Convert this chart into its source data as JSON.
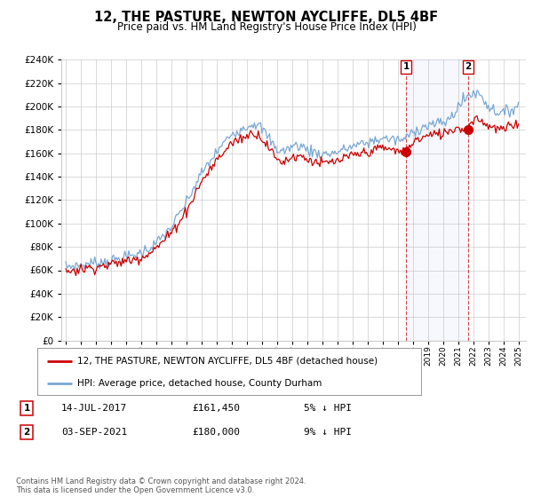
{
  "title": "12, THE PASTURE, NEWTON AYCLIFFE, DL5 4BF",
  "subtitle": "Price paid vs. HM Land Registry's House Price Index (HPI)",
  "legend_line1": "12, THE PASTURE, NEWTON AYCLIFFE, DL5 4BF (detached house)",
  "legend_line2": "HPI: Average price, detached house, County Durham",
  "annotation1_label": "1",
  "annotation1_date": "14-JUL-2017",
  "annotation1_price": "£161,450",
  "annotation1_hpi": "5% ↓ HPI",
  "annotation2_label": "2",
  "annotation2_date": "03-SEP-2021",
  "annotation2_price": "£180,000",
  "annotation2_hpi": "9% ↓ HPI",
  "footnote": "Contains HM Land Registry data © Crown copyright and database right 2024.\nThis data is licensed under the Open Government Licence v3.0.",
  "ylim": [
    0,
    240000
  ],
  "ytick_step": 20000,
  "background_color": "#ffffff",
  "plot_bg_color": "#ffffff",
  "grid_color": "#cccccc",
  "red_line_color": "#cc0000",
  "blue_line_color": "#7aa8d2",
  "marker1_x": 2017.54,
  "marker1_y": 161450,
  "marker2_x": 2021.67,
  "marker2_y": 180000,
  "vline1_x": 2017.54,
  "vline2_x": 2021.67,
  "xlim_start": 1994.7,
  "xlim_end": 2025.5
}
